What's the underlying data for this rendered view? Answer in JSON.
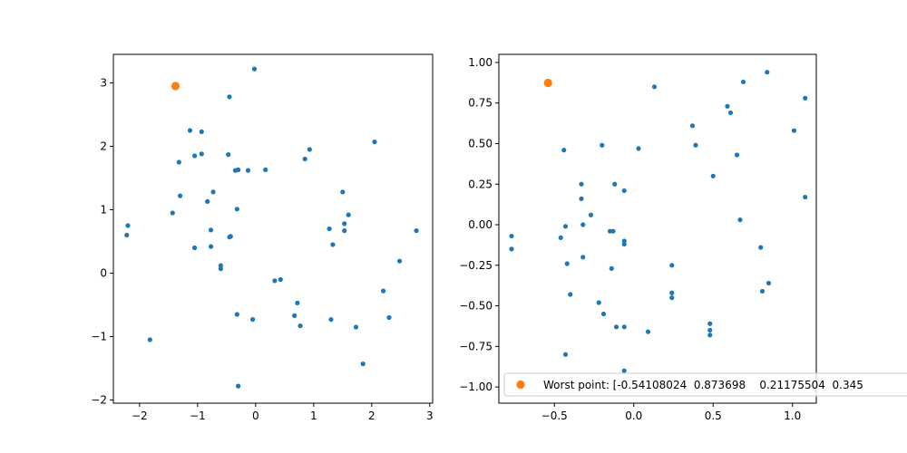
{
  "chart_data": [
    {
      "type": "scatter",
      "title": "",
      "xlabel": "",
      "ylabel": "",
      "xlim": [
        -2.45,
        3.05
      ],
      "ylim": [
        -2.05,
        3.45
      ],
      "xticks": [
        -2,
        -1,
        0,
        1,
        2,
        3
      ],
      "yticks": [
        -2,
        -1,
        0,
        1,
        2,
        3
      ],
      "grid": false,
      "series": [
        {
          "color": "#1f77b4",
          "marker_size": "small",
          "points": [
            [
              -2.2,
              0.75
            ],
            [
              -2.22,
              0.6
            ],
            [
              -1.82,
              -1.05
            ],
            [
              -1.43,
              0.95
            ],
            [
              -1.32,
              1.75
            ],
            [
              -1.3,
              1.22
            ],
            [
              -1.13,
              2.25
            ],
            [
              -1.05,
              1.85
            ],
            [
              -1.05,
              0.4
            ],
            [
              -0.93,
              2.23
            ],
            [
              -0.93,
              1.88
            ],
            [
              -0.83,
              1.13
            ],
            [
              -0.77,
              0.68
            ],
            [
              -0.77,
              0.42
            ],
            [
              -0.73,
              1.28
            ],
            [
              -0.6,
              0.12
            ],
            [
              -0.6,
              0.07
            ],
            [
              -0.47,
              1.87
            ],
            [
              -0.45,
              2.78
            ],
            [
              -0.45,
              0.57
            ],
            [
              -0.43,
              0.58
            ],
            [
              -0.35,
              1.62
            ],
            [
              -0.32,
              1.01
            ],
            [
              -0.32,
              -0.65
            ],
            [
              -0.3,
              1.63
            ],
            [
              -0.3,
              -1.78
            ],
            [
              -0.13,
              1.62
            ],
            [
              -0.05,
              -0.73
            ],
            [
              -0.02,
              3.22
            ],
            [
              0.17,
              1.63
            ],
            [
              0.33,
              -0.12
            ],
            [
              0.43,
              -0.1
            ],
            [
              0.67,
              -0.67
            ],
            [
              0.72,
              -0.47
            ],
            [
              0.77,
              -0.83
            ],
            [
              0.85,
              1.8
            ],
            [
              0.93,
              1.95
            ],
            [
              1.27,
              0.7
            ],
            [
              1.3,
              -0.73
            ],
            [
              1.33,
              0.45
            ],
            [
              1.5,
              1.28
            ],
            [
              1.53,
              0.67
            ],
            [
              1.53,
              0.78
            ],
            [
              1.6,
              0.92
            ],
            [
              1.73,
              -0.85
            ],
            [
              1.85,
              -1.43
            ],
            [
              2.05,
              2.07
            ],
            [
              2.2,
              -0.28
            ],
            [
              2.3,
              -0.7
            ],
            [
              2.48,
              0.19
            ],
            [
              2.77,
              0.67
            ]
          ]
        },
        {
          "color": "#ff7f0e",
          "marker_size": "large",
          "points": [
            [
              -1.38,
              2.95
            ]
          ]
        }
      ]
    },
    {
      "type": "scatter",
      "title": "",
      "xlabel": "",
      "ylabel": "",
      "xlim": [
        -0.85,
        1.15
      ],
      "ylim": [
        -1.1,
        1.05
      ],
      "xticks": [
        -0.5,
        0.0,
        0.5,
        1.0
      ],
      "xtick_labels": [
        "−0.5",
        "0.0",
        "0.5",
        "1.0"
      ],
      "yticks": [
        -1.0,
        -0.75,
        -0.5,
        -0.25,
        0.0,
        0.25,
        0.5,
        0.75,
        1.0
      ],
      "ytick_labels": [
        "−1.00",
        "−0.75",
        "−0.50",
        "−0.25",
        "0.00",
        "0.25",
        "0.50",
        "0.75",
        "1.00"
      ],
      "grid": false,
      "legend": {
        "placement": "lower-right",
        "entries": [
          {
            "label": "Worst point: [-0.54108024  0.873698    0.21175504  0.345",
            "color": "#ff7f0e"
          }
        ]
      },
      "series": [
        {
          "color": "#1f77b4",
          "marker_size": "small",
          "points": [
            [
              -0.77,
              -0.07
            ],
            [
              -0.77,
              -0.15
            ],
            [
              -0.46,
              -0.08
            ],
            [
              -0.44,
              0.46
            ],
            [
              -0.43,
              -0.01
            ],
            [
              -0.43,
              -0.8
            ],
            [
              -0.42,
              -0.24
            ],
            [
              -0.4,
              -0.43
            ],
            [
              -0.33,
              0.25
            ],
            [
              -0.33,
              0.16
            ],
            [
              -0.32,
              0.0
            ],
            [
              -0.32,
              -0.2
            ],
            [
              -0.27,
              0.06
            ],
            [
              -0.22,
              -0.48
            ],
            [
              -0.2,
              0.49
            ],
            [
              -0.19,
              -0.55
            ],
            [
              -0.15,
              -0.04
            ],
            [
              -0.14,
              -0.27
            ],
            [
              -0.13,
              -0.04
            ],
            [
              -0.12,
              0.25
            ],
            [
              -0.11,
              -0.63
            ],
            [
              -0.06,
              0.21
            ],
            [
              -0.06,
              -0.1
            ],
            [
              -0.06,
              -0.12
            ],
            [
              -0.06,
              -0.63
            ],
            [
              -0.06,
              -0.9
            ],
            [
              0.03,
              0.47
            ],
            [
              0.09,
              -0.66
            ],
            [
              0.13,
              0.85
            ],
            [
              0.24,
              -0.25
            ],
            [
              0.24,
              -0.42
            ],
            [
              0.24,
              -0.45
            ],
            [
              0.37,
              0.61
            ],
            [
              0.39,
              0.49
            ],
            [
              0.48,
              -0.61
            ],
            [
              0.48,
              -0.65
            ],
            [
              0.48,
              -0.68
            ],
            [
              0.5,
              0.3
            ],
            [
              0.59,
              0.73
            ],
            [
              0.61,
              0.69
            ],
            [
              0.65,
              0.43
            ],
            [
              0.67,
              0.03
            ],
            [
              0.69,
              0.88
            ],
            [
              0.8,
              -0.14
            ],
            [
              0.81,
              -0.41
            ],
            [
              0.84,
              0.94
            ],
            [
              0.85,
              -0.36
            ],
            [
              1.01,
              0.58
            ],
            [
              1.08,
              0.78
            ],
            [
              1.08,
              0.17
            ]
          ]
        },
        {
          "color": "#ff7f0e",
          "marker_size": "large",
          "points": [
            [
              -0.54,
              0.874
            ]
          ]
        }
      ]
    }
  ]
}
